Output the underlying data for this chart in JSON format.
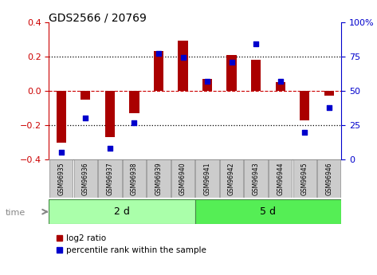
{
  "title": "GDS2566 / 20769",
  "samples": [
    "GSM96935",
    "GSM96936",
    "GSM96937",
    "GSM96938",
    "GSM96939",
    "GSM96940",
    "GSM96941",
    "GSM96942",
    "GSM96943",
    "GSM96944",
    "GSM96945",
    "GSM96946"
  ],
  "log2_ratio": [
    -0.3,
    -0.05,
    -0.27,
    -0.13,
    0.23,
    0.29,
    0.07,
    0.21,
    0.18,
    0.05,
    -0.17,
    -0.03
  ],
  "percentile_rank": [
    5,
    30,
    8,
    27,
    77,
    74,
    57,
    71,
    84,
    57,
    20,
    38
  ],
  "groups": [
    {
      "label": "2 d",
      "start": 0,
      "end": 6,
      "color": "#aaffaa"
    },
    {
      "label": "5 d",
      "start": 6,
      "end": 12,
      "color": "#55ee55"
    }
  ],
  "ylim_left": [
    -0.4,
    0.4
  ],
  "ylim_right": [
    0,
    100
  ],
  "bar_color": "#aa0000",
  "dot_color": "#0000cc",
  "dotted_line_color": "#000000",
  "zero_line_color": "#cc0000",
  "background_color": "#ffffff",
  "plot_bg_color": "#ffffff",
  "tick_label_color_left": "#cc0000",
  "tick_label_color_right": "#0000cc",
  "sample_box_color": "#cccccc",
  "time_label": "time",
  "legend_items": [
    "log2 ratio",
    "percentile rank within the sample"
  ]
}
